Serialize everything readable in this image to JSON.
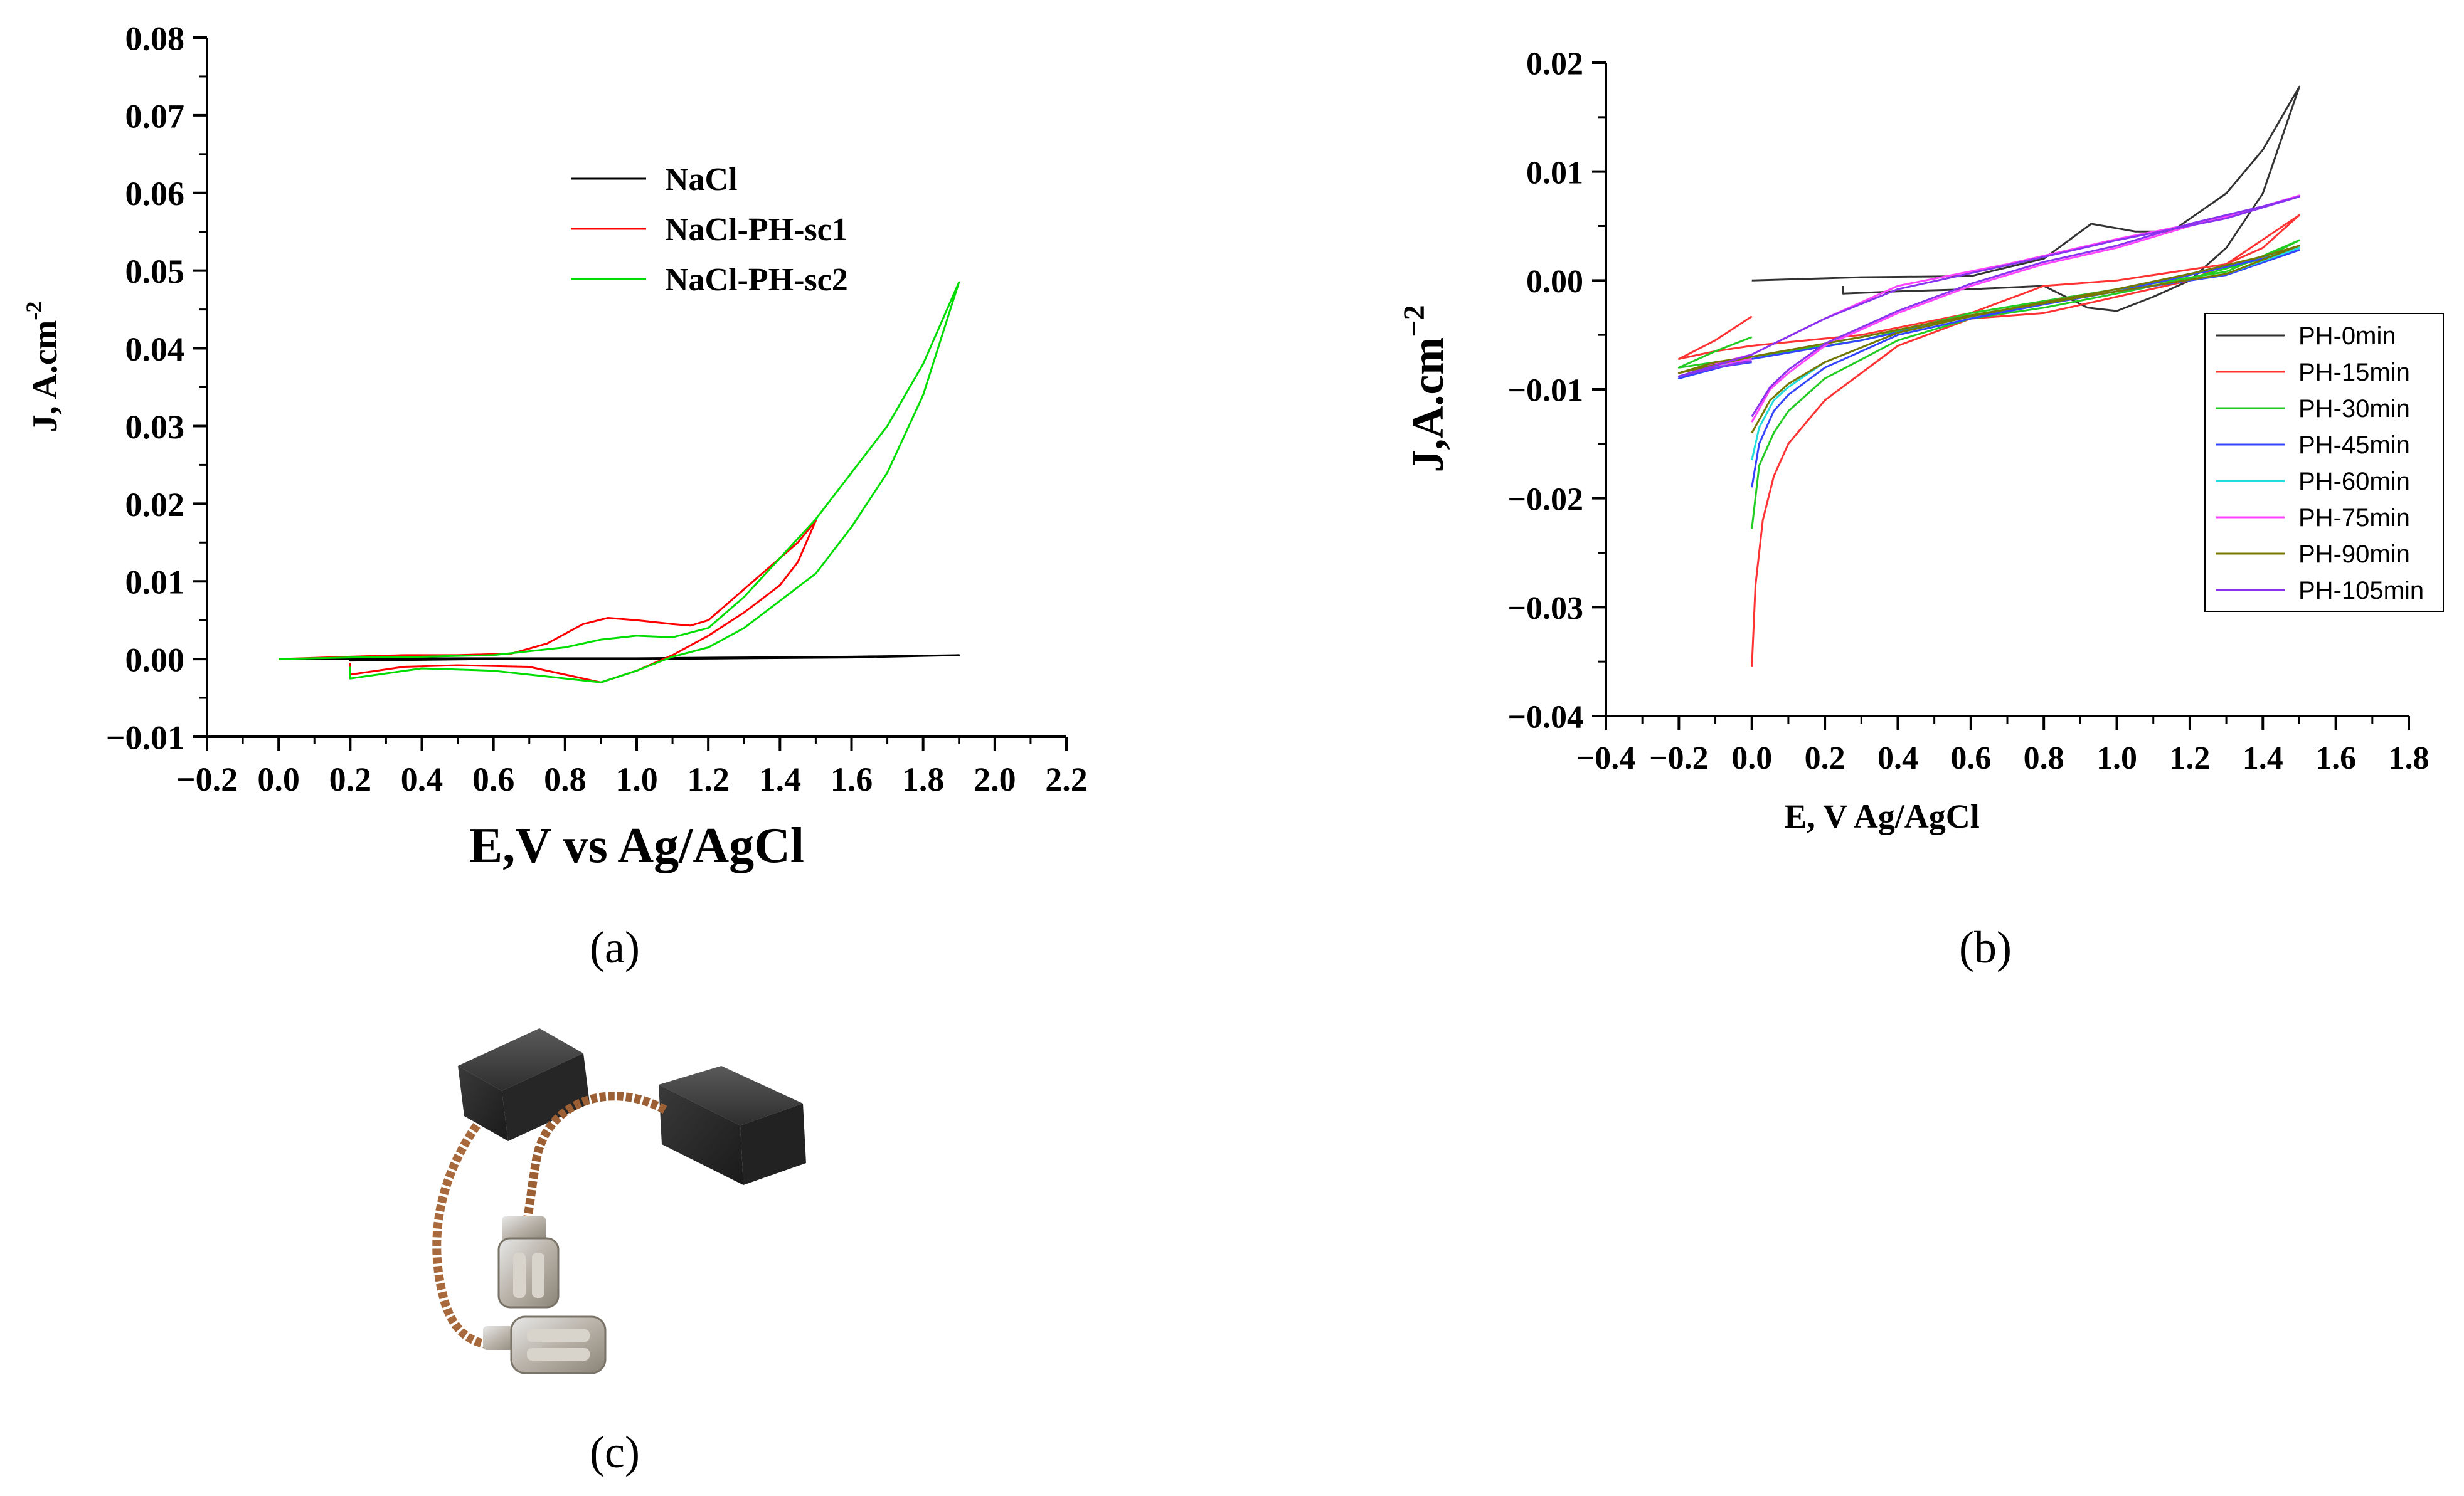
{
  "panels": {
    "a": "(a)",
    "b": "(b)",
    "c": "(c)"
  },
  "chart_data": [
    {
      "id": "a",
      "type": "line",
      "title": "",
      "xlabel": "E,V vs Ag/AgCl",
      "ylabel": "J, A.cm",
      "ylabel_sup": "-2",
      "xlim": [
        -0.2,
        2.2
      ],
      "ylim": [
        -0.01,
        0.08
      ],
      "grid": false,
      "legend_position": "top-center",
      "xticks": [
        -0.2,
        0.0,
        0.2,
        0.4,
        0.6,
        0.8,
        1.0,
        1.2,
        1.4,
        1.6,
        1.8,
        2.0,
        2.2
      ],
      "xtick_labels": [
        "−0.2",
        "0.0",
        "0.2",
        "0.4",
        "0.6",
        "0.8",
        "1.0",
        "1.2",
        "1.4",
        "1.6",
        "1.8",
        "2.0",
        "2.2"
      ],
      "yticks": [
        -0.01,
        0.0,
        0.01,
        0.02,
        0.03,
        0.04,
        0.05,
        0.06,
        0.07,
        0.08
      ],
      "ytick_labels": [
        "−0.01",
        "0.00",
        "0.01",
        "0.02",
        "0.03",
        "0.04",
        "0.05",
        "0.06",
        "0.07",
        "0.08"
      ],
      "series": [
        {
          "name": "NaCl",
          "color": "#000000",
          "points": [
            [
              0.0,
              0.0
            ],
            [
              0.5,
              0.0001
            ],
            [
              1.0,
              0.0001
            ],
            [
              1.3,
              0.0002
            ],
            [
              1.6,
              0.0003
            ],
            [
              1.9,
              0.0005
            ],
            [
              1.6,
              0.0002
            ],
            [
              1.3,
              0.0001
            ],
            [
              1.0,
              0.0
            ],
            [
              0.6,
              0.0
            ],
            [
              0.2,
              -0.0002
            ],
            [
              0.2,
              0.0
            ]
          ]
        },
        {
          "name": "NaCl-PH-sc1",
          "color": "#ff0000",
          "points": [
            [
              0.0,
              0.0
            ],
            [
              0.2,
              0.0003
            ],
            [
              0.35,
              0.0005
            ],
            [
              0.5,
              0.0005
            ],
            [
              0.65,
              0.0007
            ],
            [
              0.75,
              0.002
            ],
            [
              0.85,
              0.0045
            ],
            [
              0.92,
              0.0053
            ],
            [
              1.0,
              0.005
            ],
            [
              1.1,
              0.0045
            ],
            [
              1.15,
              0.0043
            ],
            [
              1.2,
              0.005
            ],
            [
              1.3,
              0.009
            ],
            [
              1.4,
              0.013
            ],
            [
              1.45,
              0.015
            ],
            [
              1.5,
              0.0178
            ],
            [
              1.45,
              0.0125
            ],
            [
              1.4,
              0.0095
            ],
            [
              1.3,
              0.006
            ],
            [
              1.2,
              0.003
            ],
            [
              1.1,
              0.0005
            ],
            [
              1.0,
              -0.0015
            ],
            [
              0.9,
              -0.003
            ],
            [
              0.8,
              -0.002
            ],
            [
              0.7,
              -0.001
            ],
            [
              0.5,
              -0.0008
            ],
            [
              0.35,
              -0.001
            ],
            [
              0.2,
              -0.002
            ],
            [
              0.2,
              -0.0005
            ]
          ]
        },
        {
          "name": "NaCl-PH-sc2",
          "color": "#00dd00",
          "points": [
            [
              0.0,
              0.0
            ],
            [
              0.2,
              0.0002
            ],
            [
              0.4,
              0.0003
            ],
            [
              0.6,
              0.0005
            ],
            [
              0.8,
              0.0015
            ],
            [
              0.9,
              0.0025
            ],
            [
              1.0,
              0.003
            ],
            [
              1.1,
              0.0028
            ],
            [
              1.2,
              0.004
            ],
            [
              1.3,
              0.008
            ],
            [
              1.4,
              0.013
            ],
            [
              1.5,
              0.018
            ],
            [
              1.6,
              0.024
            ],
            [
              1.7,
              0.03
            ],
            [
              1.8,
              0.038
            ],
            [
              1.9,
              0.0485
            ],
            [
              1.8,
              0.034
            ],
            [
              1.7,
              0.024
            ],
            [
              1.6,
              0.017
            ],
            [
              1.5,
              0.011
            ],
            [
              1.4,
              0.0075
            ],
            [
              1.3,
              0.004
            ],
            [
              1.2,
              0.0015
            ],
            [
              1.1,
              0.0003
            ],
            [
              1.0,
              -0.0015
            ],
            [
              0.9,
              -0.003
            ],
            [
              0.8,
              -0.0025
            ],
            [
              0.6,
              -0.0015
            ],
            [
              0.4,
              -0.0012
            ],
            [
              0.2,
              -0.0025
            ],
            [
              0.2,
              -0.001
            ]
          ]
        }
      ]
    },
    {
      "id": "b",
      "type": "line",
      "title": "",
      "xlabel": "E, V Ag/AgCl",
      "ylabel": "J,A.cm",
      "ylabel_sup": "−2",
      "xlim": [
        -0.4,
        1.8
      ],
      "ylim": [
        -0.04,
        0.02
      ],
      "grid": false,
      "legend_position": "right",
      "xticks": [
        -0.4,
        -0.2,
        0.0,
        0.2,
        0.4,
        0.6,
        0.8,
        1.0,
        1.2,
        1.4,
        1.6,
        1.8
      ],
      "xtick_labels": [
        "−0.4",
        "−0.2",
        "0.0",
        "0.2",
        "0.4",
        "0.6",
        "0.8",
        "1.0",
        "1.2",
        "1.4",
        "1.6",
        "1.8"
      ],
      "yticks": [
        -0.04,
        -0.03,
        -0.02,
        -0.01,
        0.0,
        0.01,
        0.02
      ],
      "ytick_labels": [
        "−0.04",
        "−0.03",
        "−0.02",
        "−0.01",
        "0.00",
        "0.01",
        "0.02"
      ],
      "series": [
        {
          "name": "PH-0min",
          "color": "#333333",
          "points": [
            [
              0.0,
              0.0
            ],
            [
              0.3,
              0.0003
            ],
            [
              0.6,
              0.0004
            ],
            [
              0.8,
              0.002
            ],
            [
              0.93,
              0.0052
            ],
            [
              1.05,
              0.0045
            ],
            [
              1.15,
              0.0045
            ],
            [
              1.3,
              0.008
            ],
            [
              1.4,
              0.012
            ],
            [
              1.5,
              0.0178
            ],
            [
              1.4,
              0.008
            ],
            [
              1.3,
              0.003
            ],
            [
              1.2,
              0.0
            ],
            [
              1.1,
              -0.0015
            ],
            [
              1.0,
              -0.0028
            ],
            [
              0.92,
              -0.0025
            ],
            [
              0.8,
              -0.0005
            ],
            [
              0.6,
              -0.0008
            ],
            [
              0.4,
              -0.001
            ],
            [
              0.25,
              -0.0012
            ],
            [
              0.25,
              -0.0005
            ]
          ]
        },
        {
          "name": "PH-15min",
          "color": "#ff3333",
          "points": [
            [
              0.0,
              -0.0355
            ],
            [
              0.01,
              -0.028
            ],
            [
              0.03,
              -0.022
            ],
            [
              0.06,
              -0.018
            ],
            [
              0.1,
              -0.015
            ],
            [
              0.2,
              -0.011
            ],
            [
              0.4,
              -0.006
            ],
            [
              0.6,
              -0.0035
            ],
            [
              0.8,
              -0.003
            ],
            [
              1.0,
              -0.0015
            ],
            [
              1.2,
              0.0
            ],
            [
              1.4,
              0.003
            ],
            [
              1.5,
              0.006
            ],
            [
              1.3,
              0.0015
            ],
            [
              1.0,
              0.0
            ],
            [
              0.8,
              -0.0005
            ],
            [
              0.6,
              -0.003
            ],
            [
              0.3,
              -0.005
            ],
            [
              0.0,
              -0.006
            ],
            [
              -0.1,
              -0.0065
            ],
            [
              -0.2,
              -0.0072
            ],
            [
              -0.1,
              -0.0055
            ],
            [
              0.0,
              -0.0033
            ]
          ]
        },
        {
          "name": "PH-30min",
          "color": "#22cc22",
          "points": [
            [
              0.0,
              -0.0228
            ],
            [
              0.02,
              -0.017
            ],
            [
              0.06,
              -0.014
            ],
            [
              0.1,
              -0.012
            ],
            [
              0.2,
              -0.009
            ],
            [
              0.4,
              -0.0055
            ],
            [
              0.6,
              -0.0035
            ],
            [
              0.8,
              -0.0025
            ],
            [
              1.0,
              -0.0012
            ],
            [
              1.2,
              0.0002
            ],
            [
              1.4,
              0.002
            ],
            [
              1.5,
              0.0037
            ],
            [
              1.3,
              0.0008
            ],
            [
              1.0,
              -0.0008
            ],
            [
              0.6,
              -0.003
            ],
            [
              0.3,
              -0.0055
            ],
            [
              0.0,
              -0.007
            ],
            [
              -0.2,
              -0.008
            ],
            [
              -0.1,
              -0.0065
            ],
            [
              0.0,
              -0.0052
            ]
          ]
        },
        {
          "name": "PH-45min",
          "color": "#3344ff",
          "points": [
            [
              0.0,
              -0.019
            ],
            [
              0.02,
              -0.015
            ],
            [
              0.06,
              -0.012
            ],
            [
              0.1,
              -0.0105
            ],
            [
              0.2,
              -0.008
            ],
            [
              0.4,
              -0.005
            ],
            [
              0.6,
              -0.0035
            ],
            [
              0.8,
              -0.0022
            ],
            [
              1.0,
              -0.001
            ],
            [
              1.2,
              0.0005
            ],
            [
              1.4,
              0.002
            ],
            [
              1.5,
              0.0028
            ],
            [
              1.3,
              0.0005
            ],
            [
              1.0,
              -0.001
            ],
            [
              0.6,
              -0.0033
            ],
            [
              0.3,
              -0.0055
            ],
            [
              0.0,
              -0.0072
            ],
            [
              -0.2,
              -0.009
            ],
            [
              -0.1,
              -0.008
            ],
            [
              0.0,
              -0.0075
            ]
          ]
        },
        {
          "name": "PH-60min",
          "color": "#22dddd",
          "points": [
            [
              0.0,
              -0.0165
            ],
            [
              0.02,
              -0.0135
            ],
            [
              0.06,
              -0.011
            ],
            [
              0.1,
              -0.0098
            ],
            [
              0.2,
              -0.0075
            ],
            [
              0.4,
              -0.0048
            ],
            [
              0.6,
              -0.0033
            ],
            [
              0.8,
              -0.002
            ],
            [
              1.0,
              -0.0008
            ],
            [
              1.2,
              0.0006
            ],
            [
              1.4,
              0.0022
            ],
            [
              1.5,
              0.003
            ],
            [
              1.3,
              0.0006
            ],
            [
              1.0,
              -0.001
            ],
            [
              0.6,
              -0.0032
            ],
            [
              0.3,
              -0.0052
            ],
            [
              0.0,
              -0.007
            ],
            [
              -0.2,
              -0.0088
            ],
            [
              -0.1,
              -0.0078
            ],
            [
              0.0,
              -0.0072
            ]
          ]
        },
        {
          "name": "PH-75min",
          "color": "#ff44ff",
          "points": [
            [
              0.0,
              -0.013
            ],
            [
              0.05,
              -0.01
            ],
            [
              0.1,
              -0.0085
            ],
            [
              0.2,
              -0.006
            ],
            [
              0.4,
              -0.003
            ],
            [
              0.6,
              -0.0005
            ],
            [
              0.8,
              0.0015
            ],
            [
              1.0,
              0.003
            ],
            [
              1.2,
              0.005
            ],
            [
              1.4,
              0.0068
            ],
            [
              1.5,
              0.0078
            ],
            [
              1.3,
              0.0058
            ],
            [
              1.0,
              0.0038
            ],
            [
              0.7,
              0.0015
            ],
            [
              0.4,
              -0.0005
            ],
            [
              0.2,
              -0.0035
            ],
            [
              0.0,
              -0.0068
            ],
            [
              -0.2,
              -0.0085
            ],
            [
              -0.1,
              -0.0078
            ],
            [
              0.0,
              -0.0072
            ]
          ]
        },
        {
          "name": "PH-90min",
          "color": "#777700",
          "points": [
            [
              0.0,
              -0.014
            ],
            [
              0.05,
              -0.011
            ],
            [
              0.1,
              -0.0095
            ],
            [
              0.2,
              -0.0075
            ],
            [
              0.4,
              -0.0048
            ],
            [
              0.6,
              -0.0033
            ],
            [
              0.8,
              -0.002
            ],
            [
              1.0,
              -0.0008
            ],
            [
              1.2,
              0.0006
            ],
            [
              1.4,
              0.0022
            ],
            [
              1.5,
              0.0032
            ],
            [
              1.3,
              0.0006
            ],
            [
              1.0,
              -0.001
            ],
            [
              0.6,
              -0.0032
            ],
            [
              0.3,
              -0.0052
            ],
            [
              0.0,
              -0.007
            ],
            [
              -0.2,
              -0.0085
            ],
            [
              -0.1,
              -0.0075
            ],
            [
              0.0,
              -0.007
            ]
          ]
        },
        {
          "name": "PH-105min",
          "color": "#8833ee",
          "points": [
            [
              0.0,
              -0.0125
            ],
            [
              0.05,
              -0.0098
            ],
            [
              0.1,
              -0.0082
            ],
            [
              0.2,
              -0.0058
            ],
            [
              0.4,
              -0.0028
            ],
            [
              0.6,
              -0.0003
            ],
            [
              0.8,
              0.0017
            ],
            [
              1.0,
              0.0032
            ],
            [
              1.2,
              0.0052
            ],
            [
              1.4,
              0.0068
            ],
            [
              1.5,
              0.0077
            ],
            [
              1.3,
              0.0057
            ],
            [
              1.0,
              0.0037
            ],
            [
              0.7,
              0.0014
            ],
            [
              0.4,
              -0.0008
            ],
            [
              0.2,
              -0.0035
            ],
            [
              0.0,
              -0.0068
            ],
            [
              -0.2,
              -0.0088
            ],
            [
              -0.1,
              -0.008
            ],
            [
              0.0,
              -0.0074
            ]
          ]
        }
      ]
    }
  ],
  "photo": {
    "subject": "carbon-brush-pair"
  }
}
